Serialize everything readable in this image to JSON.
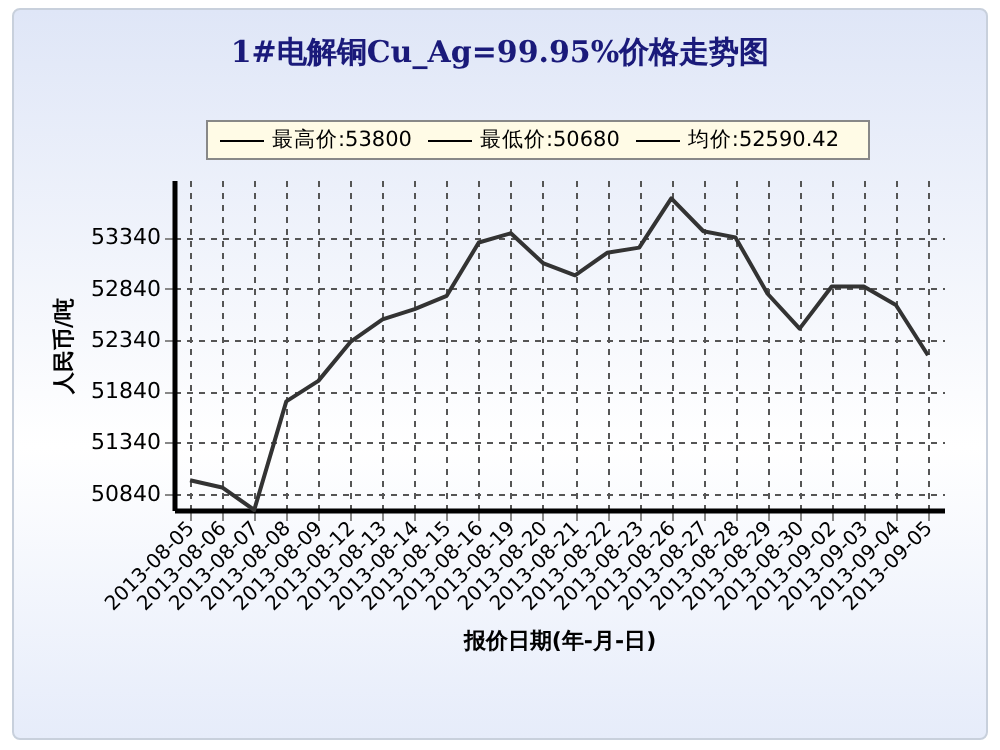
{
  "chart_data": {
    "type": "line",
    "title": "1#电解铜Cu_Ag=99.95%价格走势图",
    "xlabel": "报价日期(年-月-日)",
    "ylabel": "人民币/吨",
    "annotations": [
      "最高价:53800",
      "最低价:50680",
      "均价:52590.42"
    ],
    "categories": [
      "2013-08-05",
      "2013-08-06",
      "2013-08-07",
      "2013-08-08",
      "2013-08-09",
      "2013-08-12",
      "2013-08-13",
      "2013-08-14",
      "2013-08-15",
      "2013-08-16",
      "2013-08-19",
      "2013-08-20",
      "2013-08-21",
      "2013-08-22",
      "2013-08-23",
      "2013-08-26",
      "2013-08-27",
      "2013-08-28",
      "2013-08-29",
      "2013-08-30",
      "2013-09-02",
      "2013-09-03",
      "2013-09-04",
      "2013-09-05"
    ],
    "series": [
      {
        "color": "#333333",
        "values": [
          50970,
          50900,
          50680,
          51740,
          51940,
          52320,
          52540,
          52640,
          52770,
          53290,
          53380,
          53090,
          52970,
          53190,
          53240,
          53720,
          53400,
          53340,
          52790,
          52450,
          52860,
          52860,
          52680,
          52190
        ]
      }
    ],
    "ylim": [
      50680,
      53900
    ],
    "yticks": [
      50840,
      51340,
      51840,
      52340,
      52840,
      53340
    ],
    "grid": true,
    "marker": "none",
    "line_style": "solid"
  }
}
